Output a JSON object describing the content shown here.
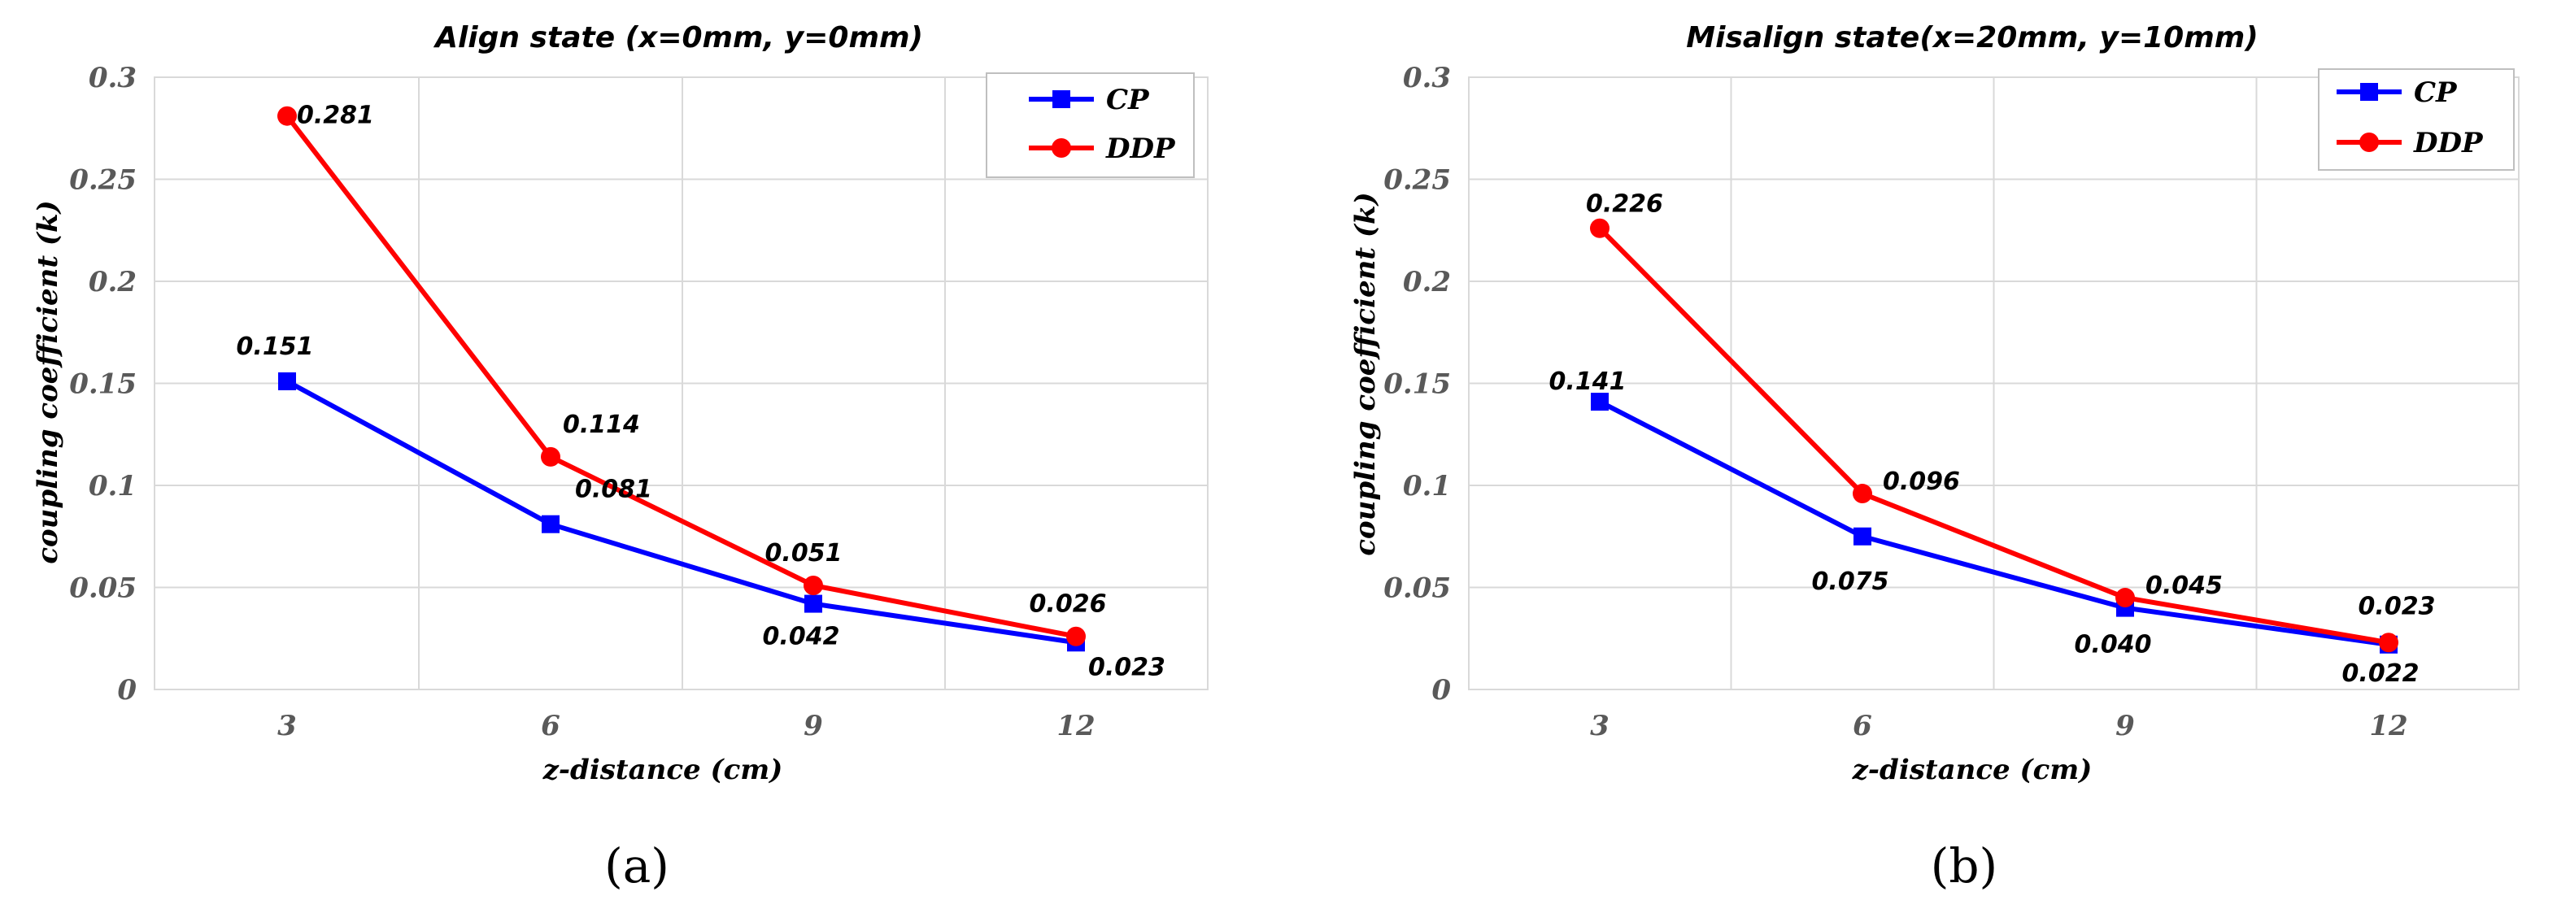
{
  "chart_data": [
    {
      "type": "line",
      "title": "Align state (x=0mm, y=0mm)",
      "xlabel": "z-distance (cm)",
      "ylabel": "coupling coefficient (k)",
      "categories": [
        "3",
        "6",
        "9",
        "12"
      ],
      "ylim": [
        0,
        0.3
      ],
      "yticks": [
        "0",
        "0.05",
        "0.1",
        "0.15",
        "0.2",
        "0.25",
        "0.3"
      ],
      "series": [
        {
          "name": "CP",
          "color": "#0000ff",
          "marker": "square",
          "values": [
            0.151,
            0.081,
            0.042,
            0.023
          ],
          "labels": [
            "0.151",
            "0.081",
            "0.042",
            "0.023"
          ]
        },
        {
          "name": "DDP",
          "color": "#ff0000",
          "marker": "circle",
          "values": [
            0.281,
            0.114,
            0.051,
            0.026
          ],
          "labels": [
            "0.281",
            "0.114",
            "0.051",
            "0.026"
          ]
        }
      ],
      "legend": "top-right",
      "caption": "(a)"
    },
    {
      "type": "line",
      "title": "Misalign state(x=20mm, y=10mm)",
      "xlabel": "z-distance (cm)",
      "ylabel": "coupling coefficient (k)",
      "categories": [
        "3",
        "6",
        "9",
        "12"
      ],
      "ylim": [
        0,
        0.3
      ],
      "yticks": [
        "0",
        "0.05",
        "0.1",
        "0.15",
        "0.2",
        "0.25",
        "0.3"
      ],
      "series": [
        {
          "name": "CP",
          "color": "#0000ff",
          "marker": "square",
          "values": [
            0.141,
            0.075,
            0.04,
            0.022
          ],
          "labels": [
            "0.141",
            "0.075",
            "0.040",
            "0.022"
          ]
        },
        {
          "name": "DDP",
          "color": "#ff0000",
          "marker": "circle",
          "values": [
            0.226,
            0.096,
            0.045,
            0.023
          ],
          "labels": [
            "0.226",
            "0.096",
            "0.045",
            "0.023"
          ]
        }
      ],
      "legend": "top-right",
      "caption": "(b)"
    }
  ]
}
